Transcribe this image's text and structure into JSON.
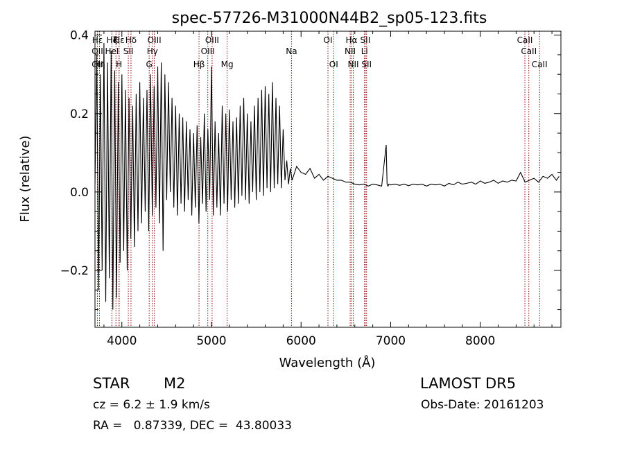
{
  "chart_data": {
    "type": "line",
    "title": "spec-57726-M31000N44B2_sp05-123.fits",
    "xlabel": "Wavelength (Å)",
    "ylabel": "Flux (relative)",
    "xlim": [
      3700,
      8900
    ],
    "ylim": [
      -0.345,
      0.41
    ],
    "x_ticks": [
      4000,
      5000,
      6000,
      7000,
      8000
    ],
    "x_tick_labels": [
      "4000",
      "5000",
      "6000",
      "7000",
      "8000"
    ],
    "y_ticks": [
      -0.2,
      0.0,
      0.2,
      0.4
    ],
    "y_tick_labels": [
      "−0.2",
      "0.0",
      "0.2",
      "0.4"
    ],
    "grid": false,
    "line_color": "#000000",
    "marker_color": "#8b0000",
    "line_markers": [
      {
        "label": "Hε",
        "wavelength": 3727,
        "row": 1
      },
      {
        "label": "OII",
        "wavelength": 3727,
        "row": 3
      },
      {
        "label": "OII",
        "wavelength": 3727,
        "row": 2
      },
      {
        "label": "Hη",
        "wavelength": 3750,
        "row": 3
      },
      {
        "label": "Hζ",
        "wavelength": 3889,
        "row": 1
      },
      {
        "label": "Hε",
        "wavelength": 3970,
        "row": 1
      },
      {
        "label": "K",
        "wavelength": 3934,
        "row": 1
      },
      {
        "label": "H",
        "wavelength": 3968,
        "row": 3
      },
      {
        "label": "HeI",
        "wavelength": 3889,
        "row": 2
      },
      {
        "label": "SII",
        "wavelength": 4072,
        "row": 2
      },
      {
        "label": "Hδ",
        "wavelength": 4102,
        "row": 1
      },
      {
        "label": "OIII",
        "wavelength": 4363,
        "row": 1
      },
      {
        "label": "Hγ",
        "wavelength": 4341,
        "row": 2
      },
      {
        "label": "G",
        "wavelength": 4305,
        "row": 3
      },
      {
        "label": "Hβ",
        "wavelength": 4861,
        "row": 3
      },
      {
        "label": "OIII",
        "wavelength": 5007,
        "row": 1
      },
      {
        "label": "OIII",
        "wavelength": 4959,
        "row": 2
      },
      {
        "label": "Mg",
        "wavelength": 5175,
        "row": 3
      },
      {
        "label": "Na",
        "wavelength": 5893,
        "row": 2
      },
      {
        "label": "OI",
        "wavelength": 6300,
        "row": 1
      },
      {
        "label": "OI",
        "wavelength": 6364,
        "row": 3
      },
      {
        "label": "Hα",
        "wavelength": 6563,
        "row": 1
      },
      {
        "label": "NII",
        "wavelength": 6548,
        "row": 2
      },
      {
        "label": "NII",
        "wavelength": 6583,
        "row": 3
      },
      {
        "label": "SII",
        "wavelength": 6717,
        "row": 1
      },
      {
        "label": "Li",
        "wavelength": 6708,
        "row": 2
      },
      {
        "label": "SII",
        "wavelength": 6731,
        "row": 3
      },
      {
        "label": "CaII",
        "wavelength": 8498,
        "row": 1
      },
      {
        "label": "CaII",
        "wavelength": 8542,
        "row": 2
      },
      {
        "label": "CaII",
        "wavelength": 8662,
        "row": 3
      }
    ],
    "series": [
      {
        "x": [
          3700,
          3720,
          3740,
          3760,
          3780,
          3800,
          3820,
          3840,
          3860,
          3880,
          3900,
          3920,
          3940,
          3960,
          3980,
          4000,
          4020,
          4040,
          4060,
          4080,
          4100,
          4120,
          4140,
          4160,
          4180,
          4200,
          4220,
          4240,
          4260,
          4280,
          4300,
          4320,
          4340,
          4360,
          4380,
          4400,
          4420,
          4440,
          4460,
          4480,
          4500,
          4520,
          4540,
          4560,
          4580,
          4600,
          4620,
          4640,
          4660,
          4680,
          4700,
          4720,
          4740,
          4760,
          4780,
          4800,
          4820,
          4840,
          4860,
          4880,
          4900,
          4920,
          4940,
          4960,
          4980,
          5000,
          5020,
          5040,
          5060,
          5080,
          5100,
          5120,
          5140,
          5160,
          5180,
          5200,
          5220,
          5240,
          5260,
          5280,
          5300,
          5320,
          5340,
          5360,
          5380,
          5400,
          5420,
          5440,
          5460,
          5480,
          5500,
          5520,
          5540,
          5560,
          5580,
          5600,
          5620,
          5640,
          5660,
          5680,
          5700,
          5720,
          5740,
          5760,
          5780,
          5800,
          5820,
          5840,
          5860,
          5880,
          5900,
          5950,
          6000,
          6050,
          6100,
          6150,
          6200,
          6250,
          6300,
          6350,
          6400,
          6450,
          6500,
          6550,
          6600,
          6650,
          6700,
          6750,
          6800,
          6850,
          6900,
          6950,
          6960,
          6970,
          6980,
          7000,
          7050,
          7100,
          7150,
          7200,
          7250,
          7300,
          7350,
          7400,
          7450,
          7500,
          7550,
          7600,
          7650,
          7700,
          7750,
          7800,
          7850,
          7900,
          7950,
          8000,
          8050,
          8100,
          8150,
          8200,
          8250,
          8300,
          8350,
          8400,
          8450,
          8500,
          8550,
          8600,
          8650,
          8700,
          8750,
          8800,
          8850,
          8880
        ],
        "values": [
          0.02,
          0.35,
          -0.25,
          0.3,
          -0.2,
          0.38,
          -0.28,
          0.33,
          -0.22,
          0.36,
          -0.3,
          0.31,
          -0.27,
          0.28,
          -0.18,
          0.3,
          -0.15,
          0.26,
          -0.2,
          0.24,
          -0.12,
          0.22,
          -0.14,
          0.25,
          -0.1,
          0.28,
          -0.08,
          0.24,
          -0.05,
          0.26,
          -0.1,
          0.3,
          -0.06,
          0.27,
          -0.04,
          0.32,
          -0.08,
          0.33,
          -0.15,
          0.3,
          -0.02,
          0.28,
          0.0,
          0.24,
          -0.04,
          0.22,
          -0.06,
          0.2,
          -0.03,
          0.19,
          -0.05,
          0.18,
          -0.02,
          0.16,
          -0.06,
          0.15,
          -0.04,
          0.17,
          -0.08,
          0.14,
          -0.03,
          0.2,
          -0.05,
          0.16,
          -0.02,
          0.32,
          -0.06,
          0.18,
          -0.04,
          0.15,
          -0.06,
          0.22,
          -0.03,
          0.2,
          -0.05,
          0.21,
          -0.02,
          0.18,
          -0.04,
          0.19,
          -0.03,
          0.22,
          -0.01,
          0.24,
          -0.02,
          0.2,
          -0.03,
          0.18,
          0.0,
          0.22,
          -0.02,
          0.24,
          0.0,
          0.26,
          -0.01,
          0.27,
          0.01,
          0.25,
          0.0,
          0.28,
          0.01,
          0.24,
          0.02,
          0.22,
          0.01,
          0.16,
          0.03,
          0.08,
          0.02,
          0.06,
          0.03,
          0.065,
          0.05,
          0.045,
          0.06,
          0.035,
          0.045,
          0.03,
          0.04,
          0.035,
          0.03,
          0.03,
          0.025,
          0.025,
          0.02,
          0.018,
          0.02,
          0.015,
          0.02,
          0.018,
          0.015,
          0.12,
          0.02,
          0.015,
          0.02,
          0.018,
          0.02,
          0.017,
          0.02,
          0.016,
          0.02,
          0.018,
          0.02,
          0.015,
          0.02,
          0.018,
          0.02,
          0.015,
          0.022,
          0.018,
          0.025,
          0.02,
          0.022,
          0.025,
          0.02,
          0.028,
          0.022,
          0.025,
          0.03,
          0.022,
          0.028,
          0.025,
          0.03,
          0.028,
          0.05,
          0.025,
          0.03,
          0.035,
          0.025,
          0.04,
          0.035,
          0.045,
          0.03,
          0.04
        ]
      }
    ]
  },
  "info": {
    "object_class": "STAR",
    "subclass": "M2",
    "survey": "LAMOST DR5",
    "redshift": "cz = 6.2 ± 1.9 km/s",
    "obs_date": "Obs-Date: 20161203",
    "coordinates": "RA =   0.87339, DEC =  43.80033"
  }
}
